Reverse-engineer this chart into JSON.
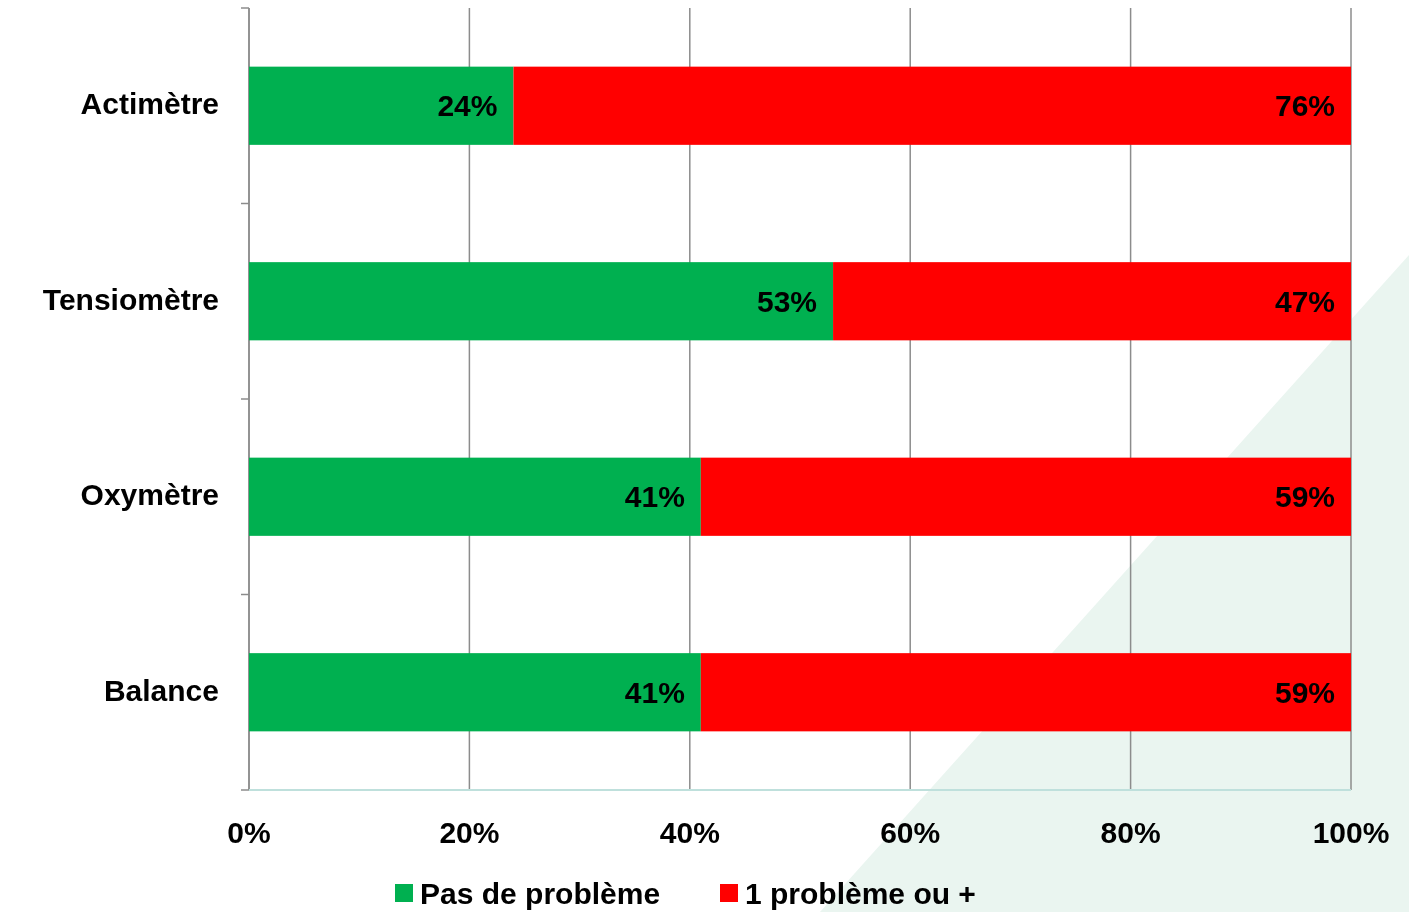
{
  "chart_data": {
    "type": "bar",
    "orientation": "horizontal",
    "stacked": true,
    "categories": [
      "Actimètre",
      "Tensiomètre",
      "Oxymètre",
      "Balance"
    ],
    "series": [
      {
        "name": "Pas de problème",
        "color": "#00b050",
        "values": [
          24,
          53,
          41,
          41
        ],
        "value_labels": [
          "24%",
          "53%",
          "41%",
          "41%"
        ]
      },
      {
        "name": "1 problème ou +",
        "color": "#ff0000",
        "values": [
          76,
          47,
          59,
          59
        ],
        "value_labels": [
          "76%",
          "47%",
          "59%",
          "59%"
        ]
      }
    ],
    "xlim": [
      0,
      100
    ],
    "xticks": [
      {
        "value": 0,
        "label": "0%"
      },
      {
        "value": 20,
        "label": "20%"
      },
      {
        "value": 40,
        "label": "40%"
      },
      {
        "value": 60,
        "label": "60%"
      },
      {
        "value": 80,
        "label": "80%"
      },
      {
        "value": 100,
        "label": "100%"
      }
    ],
    "grid": "x",
    "legend": "bottom"
  }
}
